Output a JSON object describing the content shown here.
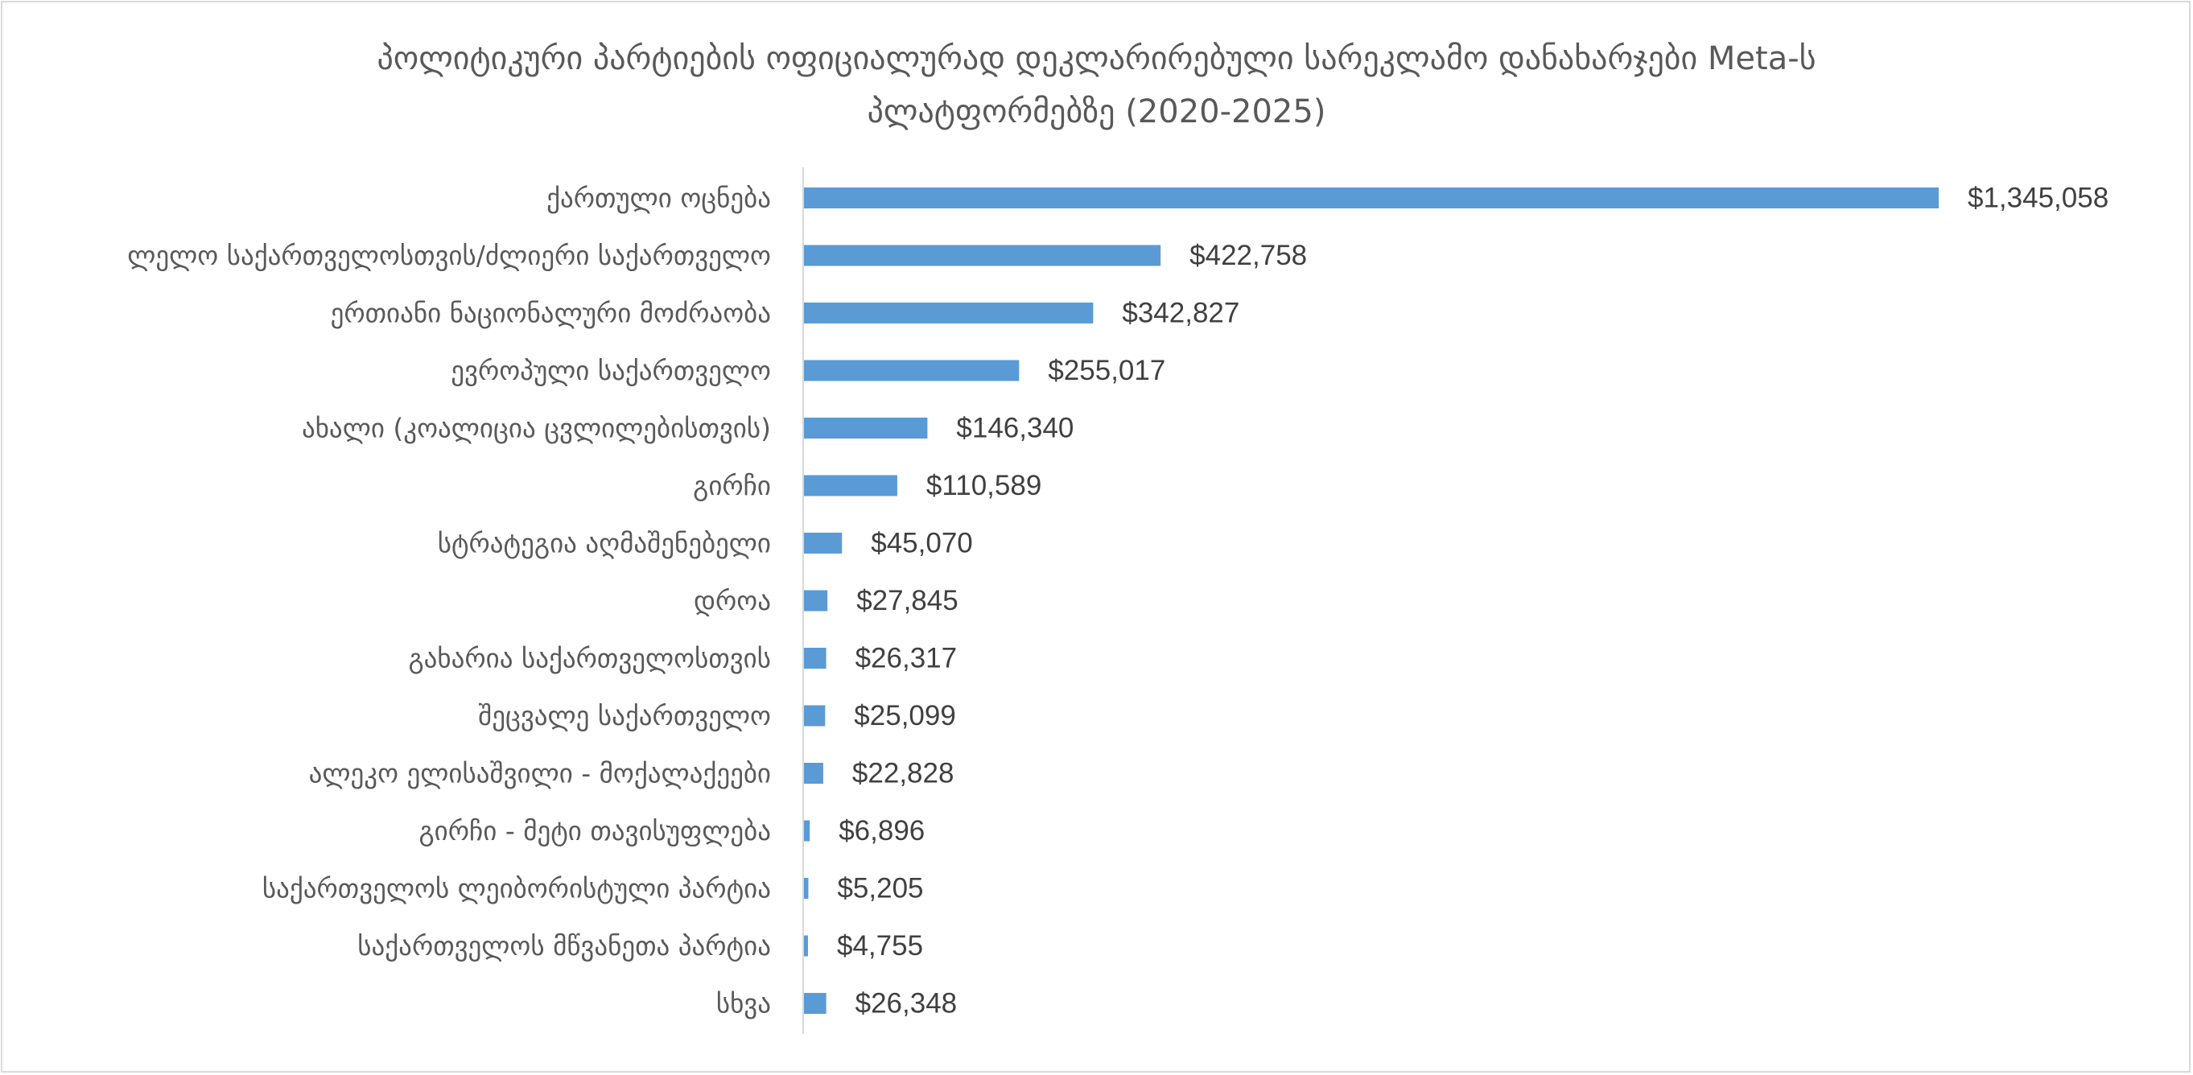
{
  "chart_data": {
    "type": "bar",
    "orientation": "horizontal",
    "title_line1": "პოლიტიკური პარტიების ოფიციალურად დეკლარირებული სარეკლამო დანახარჯები Meta-ს",
    "title_line2": "პლატფორმებზე (2020-2025)",
    "categories": [
      "ქართული ოცნება",
      "ლელო საქართველოსთვის/ძლიერი საქართველო",
      "ერთიანი ნაციონალური მოძრაობა",
      "ევროპული საქართველო",
      "ახალი (კოალიცია ცვლილებისთვის)",
      "გირჩი",
      "სტრატეგია აღმაშენებელი",
      "დროა",
      "გახარია საქართველოსთვის",
      "შეცვალე საქართველო",
      "ალეკო ელისაშვილი - მოქალაქეები",
      "გირჩი - მეტი თავისუფლება",
      "საქართველოს ლეიბორისტული პარტია",
      "საქართველოს მწვანეთა პარტია",
      "სხვა"
    ],
    "values": [
      1345058,
      422758,
      342827,
      255017,
      146340,
      110589,
      45070,
      27845,
      26317,
      25099,
      22828,
      6896,
      5205,
      4755,
      26348
    ],
    "data_labels": [
      "$1,345,058",
      "$422,758",
      "$342,827",
      "$255,017",
      "$146,340",
      "$110,589",
      "$45,070",
      "$27,845",
      "$26,317",
      "$25,099",
      "$22,828",
      "$6,896",
      "$5,205",
      "$4,755",
      "$26,348"
    ],
    "xlim": [
      0,
      1345058
    ],
    "grid": false,
    "legend": "none",
    "bar_color": "#5b9bd5",
    "axis_color": "#d9d9d9"
  }
}
